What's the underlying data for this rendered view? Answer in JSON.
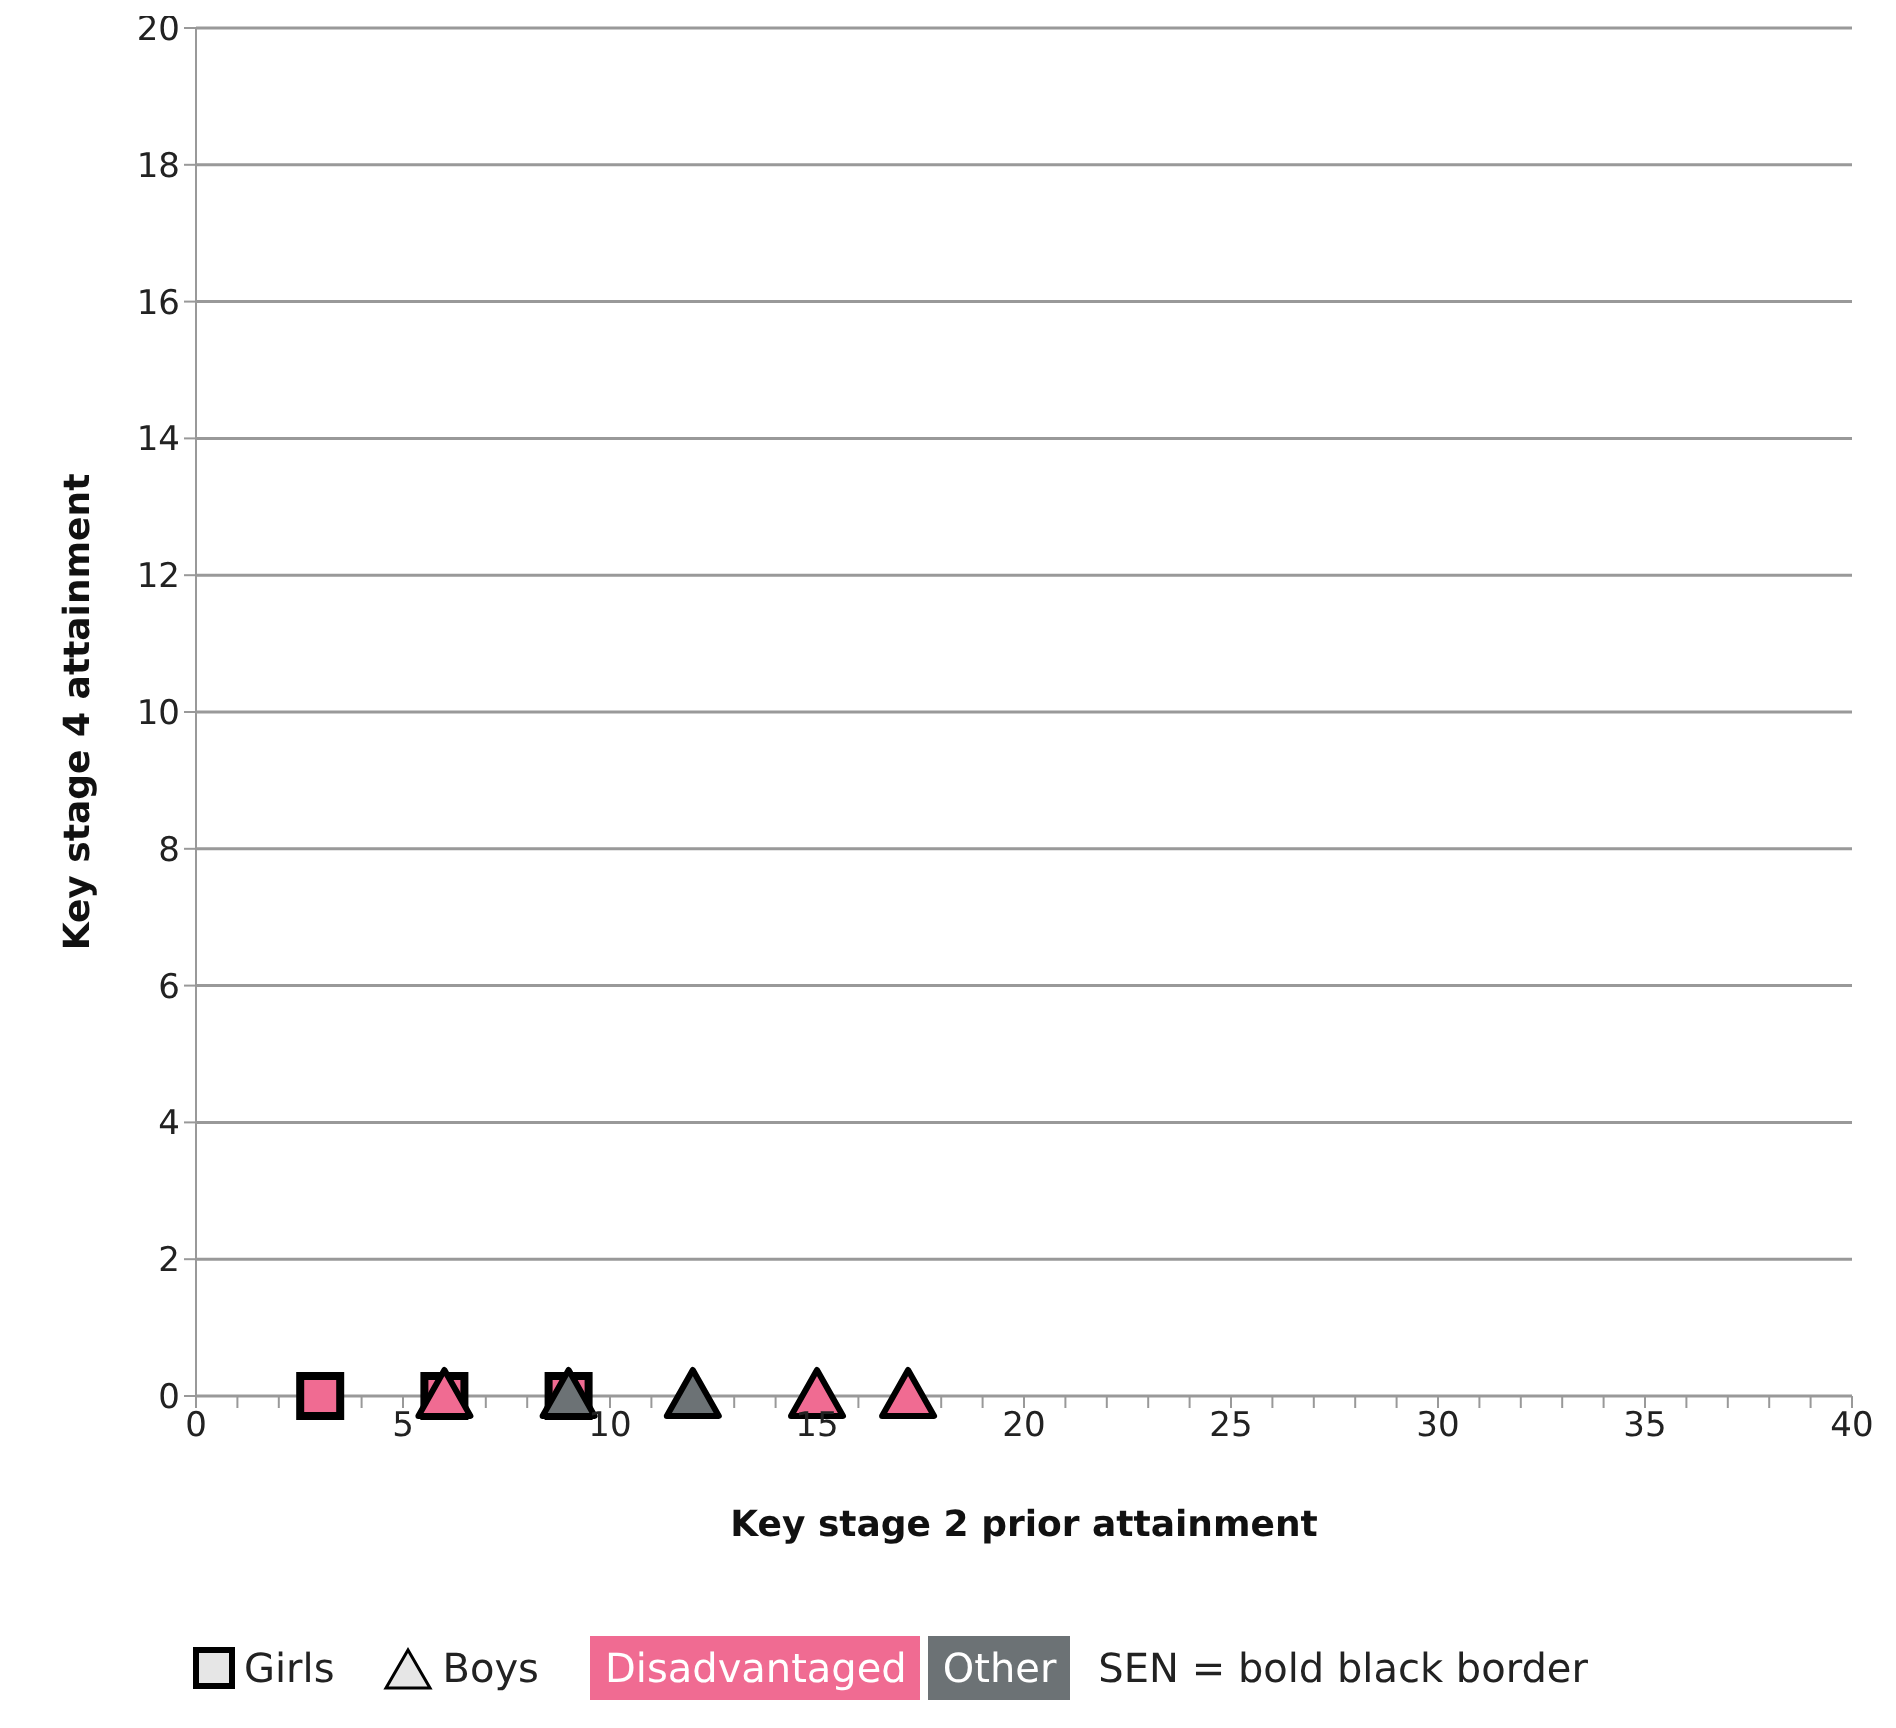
{
  "chart_data": {
    "type": "scatter",
    "xlabel": "Key stage 2 prior attainment",
    "ylabel": "Key stage 4 attainment",
    "xlim": [
      0,
      40
    ],
    "ylim": [
      0,
      20
    ],
    "xticks": [
      0,
      {
        "value": 1,
        "label": null
      },
      {
        "value": 2,
        "label": null
      },
      {
        "value": 3,
        "label": null
      },
      {
        "value": 4,
        "label": null
      },
      5,
      {
        "value": 6,
        "label": null
      },
      {
        "value": 7,
        "label": null
      },
      {
        "value": 8,
        "label": null
      },
      {
        "value": 9,
        "label": null
      },
      10,
      {
        "value": 11,
        "label": null
      },
      {
        "value": 12,
        "label": null
      },
      {
        "value": 13,
        "label": null
      },
      {
        "value": 14,
        "label": null
      },
      15,
      {
        "value": 16,
        "label": null
      },
      {
        "value": 17,
        "label": null
      },
      {
        "value": 18,
        "label": null
      },
      {
        "value": 19,
        "label": null
      },
      20,
      {
        "value": 21,
        "label": null
      },
      {
        "value": 22,
        "label": null
      },
      {
        "value": 23,
        "label": null
      },
      {
        "value": 24,
        "label": null
      },
      25,
      {
        "value": 26,
        "label": null
      },
      {
        "value": 27,
        "label": null
      },
      {
        "value": 28,
        "label": null
      },
      {
        "value": 29,
        "label": null
      },
      30,
      {
        "value": 31,
        "label": null
      },
      {
        "value": 32,
        "label": null
      },
      {
        "value": 33,
        "label": null
      },
      {
        "value": 34,
        "label": null
      },
      35,
      {
        "value": 36,
        "label": null
      },
      {
        "value": 37,
        "label": null
      },
      {
        "value": 38,
        "label": null
      },
      {
        "value": 39,
        "label": null
      },
      40
    ],
    "yticks": [
      0,
      2,
      4,
      6,
      8,
      10,
      12,
      14,
      16,
      18,
      20
    ],
    "grid": "y",
    "series": [
      {
        "marker": "square",
        "color": "#f06b92",
        "x": [
          3,
          6,
          9
        ],
        "values": [
          0,
          0,
          0
        ]
      },
      {
        "marker": "triangle",
        "color": "#f06b92",
        "x": [
          6,
          15,
          17.2
        ],
        "values": [
          0,
          0,
          0
        ]
      },
      {
        "marker": "triangle",
        "color": "#6c7275",
        "x": [
          9,
          12
        ],
        "values": [
          0,
          0
        ]
      }
    ],
    "annotations": [
      "Girls",
      "Boys",
      "Disadvantaged",
      "Other",
      "SEN = bold black border"
    ]
  }
}
